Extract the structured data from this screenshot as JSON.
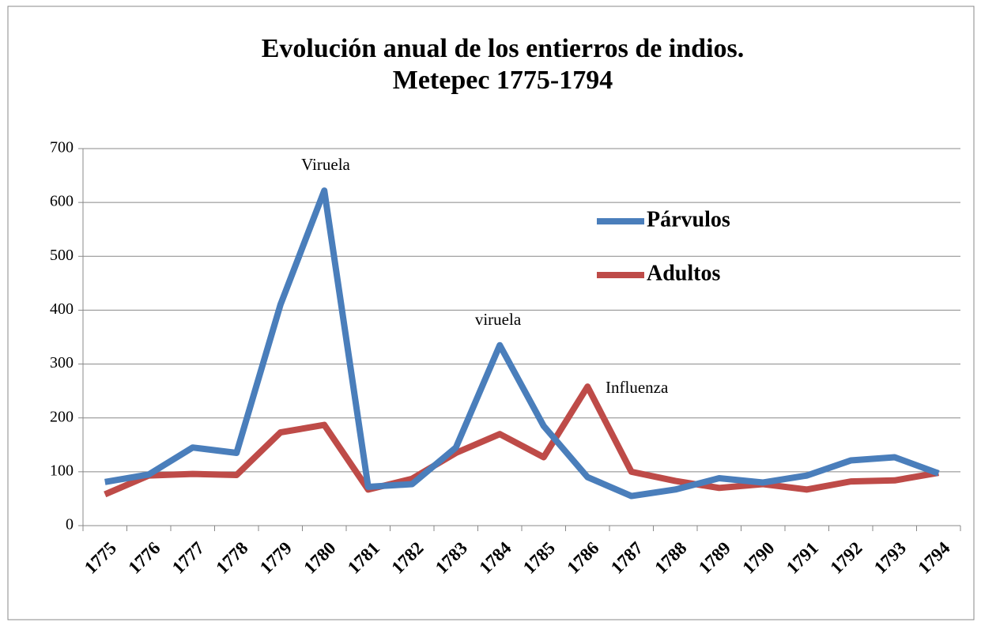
{
  "chart_data": {
    "type": "line",
    "title": "Evolución anual de los entierros de indios.",
    "subtitle": "Metepec 1775-1794",
    "categories": [
      "1775",
      "1776",
      "1777",
      "1778",
      "1779",
      "1780",
      "1781",
      "1782",
      "1783",
      "1784",
      "1785",
      "1786",
      "1787",
      "1788",
      "1789",
      "1790",
      "1791",
      "1792",
      "1793",
      "1794"
    ],
    "series": [
      {
        "name": "Párvulos",
        "color": "#4a7ebb",
        "values": [
          81,
          95,
          145,
          135,
          410,
          622,
          72,
          77,
          145,
          335,
          185,
          90,
          55,
          67,
          88,
          80,
          93,
          121,
          127,
          97
        ]
      },
      {
        "name": "Adultos",
        "color": "#be4b48",
        "values": [
          58,
          93,
          96,
          94,
          173,
          187,
          67,
          87,
          135,
          170,
          127,
          258,
          100,
          83,
          70,
          77,
          67,
          82,
          84,
          98
        ]
      }
    ],
    "annotations": [
      "Viruela",
      "viruela",
      "Influenza"
    ],
    "ylim": [
      0,
      700
    ],
    "yticks": [
      0,
      100,
      200,
      300,
      400,
      500,
      600,
      700
    ],
    "grid": true,
    "legend": "upper right"
  }
}
